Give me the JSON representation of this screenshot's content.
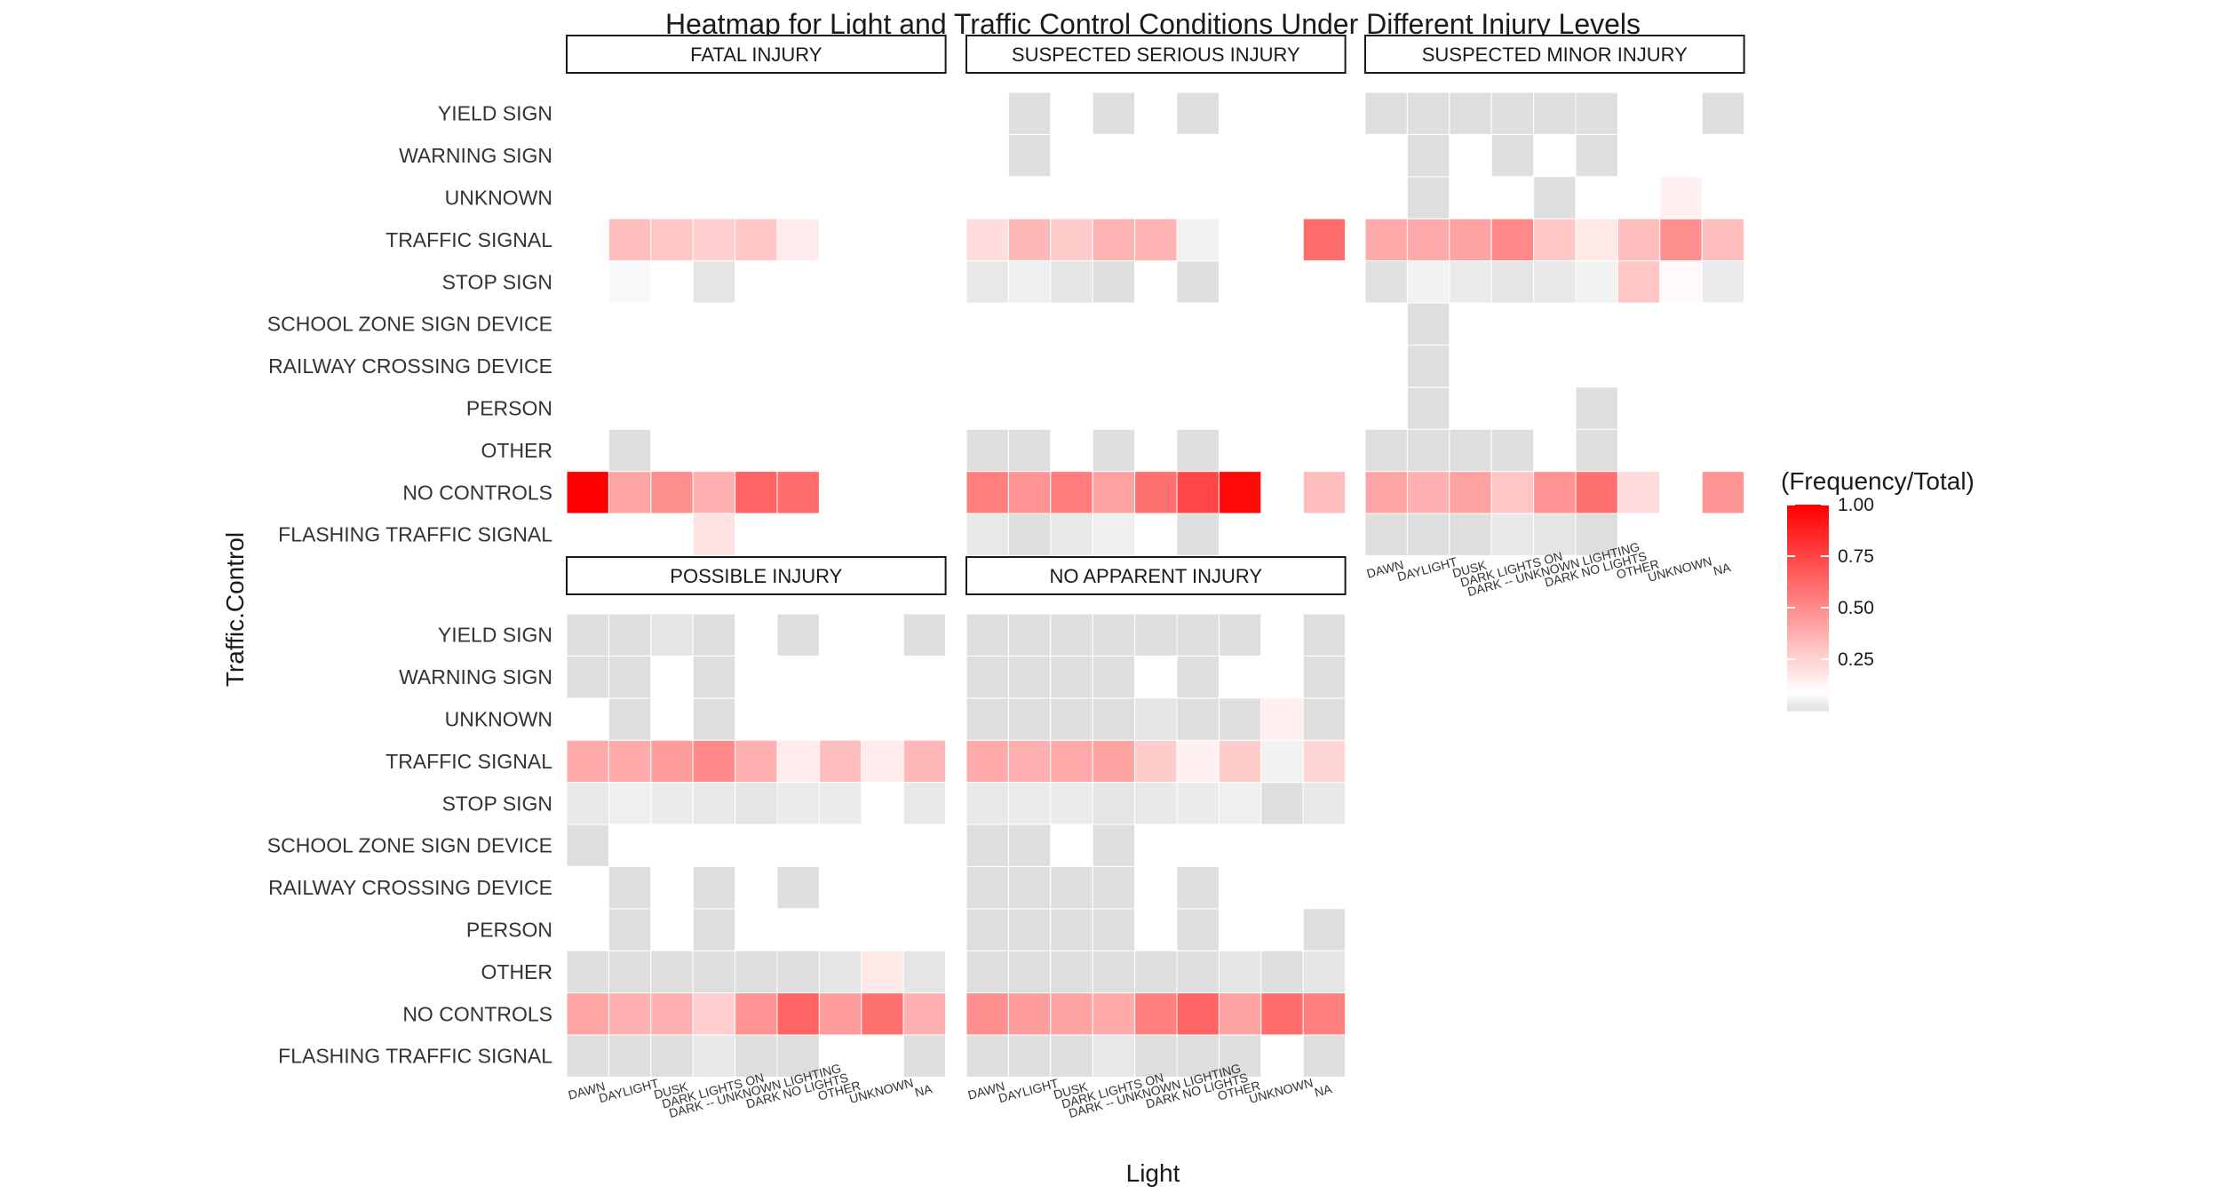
{
  "chart_data": {
    "type": "heatmap",
    "title": "Heatmap for Light and Traffic Control Conditions Under Different Injury Levels",
    "xlabel": "Light",
    "ylabel": "Traffic.Control",
    "x_categories": [
      "DAWN",
      "DAYLIGHT",
      "DUSK",
      "DARK LIGHTS ON",
      "DARK -- UNKNOWN LIGHTING",
      "DARK NO LIGHTS",
      "OTHER",
      "UNKNOWN",
      "NA"
    ],
    "y_categories": [
      "FLASHING TRAFFIC SIGNAL",
      "NO CONTROLS",
      "OTHER",
      "PERSON",
      "RAILWAY CROSSING DEVICE",
      "SCHOOL ZONE SIGN DEVICE",
      "STOP SIGN",
      "TRAFFIC SIGNAL",
      "UNKNOWN",
      "WARNING SIGN",
      "YIELD SIGN"
    ],
    "legend": {
      "title": "(Frequency/Total)",
      "ticks": [
        "0.25",
        "0.50",
        "0.75",
        "1.00"
      ],
      "tick_values": [
        0.25,
        0.5,
        0.75,
        1.0
      ],
      "low_color": "#dedede",
      "mid_color": "#ffffff",
      "high_color": "#ff0000",
      "placement": "right"
    },
    "panels": [
      {
        "name": "FATAL INJURY",
        "values": [
          [
            null,
            null,
            null,
            0.2,
            null,
            null,
            null,
            null,
            null
          ],
          [
            1.0,
            0.42,
            0.5,
            0.38,
            0.65,
            0.62,
            null,
            null,
            null
          ],
          [
            null,
            0.0,
            null,
            null,
            null,
            null,
            null,
            null,
            null
          ],
          [
            null,
            null,
            null,
            null,
            null,
            null,
            null,
            null,
            null
          ],
          [
            null,
            null,
            null,
            null,
            null,
            null,
            null,
            null,
            null
          ],
          [
            null,
            null,
            null,
            null,
            null,
            null,
            null,
            null,
            null
          ],
          [
            null,
            0.08,
            0.1,
            0.02,
            null,
            null,
            null,
            null,
            null
          ],
          [
            null,
            0.33,
            0.3,
            0.27,
            0.3,
            0.17,
            null,
            null,
            null
          ],
          [
            null,
            null,
            null,
            null,
            null,
            null,
            null,
            null,
            null
          ],
          [
            null,
            null,
            null,
            null,
            null,
            null,
            null,
            null,
            null
          ],
          [
            null,
            null,
            null,
            null,
            null,
            null,
            null,
            null,
            null
          ]
        ]
      },
      {
        "name": "SUSPECTED SERIOUS INJURY",
        "values": [
          [
            0.03,
            0.0,
            0.03,
            0.05,
            null,
            0.0,
            null,
            null,
            null
          ],
          [
            0.55,
            0.48,
            0.56,
            0.43,
            0.6,
            0.75,
            0.97,
            null,
            0.33
          ],
          [
            0.0,
            0.0,
            null,
            0.0,
            null,
            0.0,
            null,
            null,
            null
          ],
          [
            null,
            null,
            null,
            null,
            null,
            null,
            null,
            null,
            null
          ],
          [
            null,
            null,
            null,
            null,
            null,
            null,
            null,
            null,
            null
          ],
          [
            null,
            null,
            null,
            null,
            null,
            null,
            null,
            null,
            null
          ],
          [
            0.03,
            0.05,
            0.02,
            0.0,
            null,
            0.0,
            null,
            null,
            null
          ],
          [
            0.22,
            0.35,
            0.28,
            0.37,
            0.37,
            0.06,
            null,
            null,
            0.62
          ],
          [
            null,
            null,
            null,
            null,
            null,
            null,
            null,
            null,
            null
          ],
          [
            null,
            0.0,
            null,
            null,
            null,
            null,
            null,
            null,
            null
          ],
          [
            null,
            0.0,
            null,
            0.0,
            null,
            0.0,
            null,
            null,
            null
          ]
        ]
      },
      {
        "name": "SUSPECTED MINOR INJURY",
        "values": [
          [
            0.0,
            0.0,
            0.0,
            0.03,
            0.02,
            0.0,
            null,
            null,
            null
          ],
          [
            0.42,
            0.38,
            0.43,
            0.3,
            0.48,
            0.6,
            0.23,
            0.1,
            0.47
          ],
          [
            0.0,
            0.0,
            0.0,
            0.0,
            null,
            0.0,
            null,
            null,
            null
          ],
          [
            null,
            0.0,
            null,
            null,
            null,
            0.0,
            null,
            null,
            null
          ],
          [
            null,
            0.0,
            null,
            null,
            null,
            null,
            null,
            null,
            null
          ],
          [
            null,
            0.0,
            null,
            null,
            null,
            null,
            null,
            null,
            null
          ],
          [
            0.01,
            0.06,
            0.04,
            0.02,
            0.03,
            0.06,
            0.3,
            0.12,
            0.04
          ],
          [
            0.4,
            0.4,
            0.43,
            0.52,
            0.3,
            0.18,
            0.33,
            0.5,
            0.33
          ],
          [
            null,
            0.0,
            null,
            null,
            0.0,
            null,
            null,
            0.15,
            null
          ],
          [
            null,
            0.0,
            null,
            0.0,
            null,
            0.0,
            null,
            null,
            null
          ],
          [
            0.0,
            0.0,
            0.0,
            0.0,
            0.0,
            0.0,
            null,
            null,
            0.0
          ]
        ]
      },
      {
        "name": "POSSIBLE INJURY",
        "values": [
          [
            0.0,
            0.0,
            0.0,
            0.03,
            0.0,
            0.0,
            null,
            null,
            0.0
          ],
          [
            0.42,
            0.38,
            0.38,
            0.27,
            0.48,
            0.65,
            0.45,
            0.6,
            0.38
          ],
          [
            0.0,
            0.0,
            0.0,
            0.0,
            0.0,
            0.0,
            0.02,
            0.18,
            0.02
          ],
          [
            null,
            0.0,
            null,
            0.0,
            null,
            null,
            null,
            null,
            null
          ],
          [
            null,
            0.0,
            null,
            0.0,
            null,
            0.0,
            null,
            null,
            null
          ],
          [
            0.0,
            null,
            null,
            null,
            null,
            null,
            null,
            null,
            null
          ],
          [
            0.03,
            0.05,
            0.04,
            0.03,
            0.02,
            0.04,
            0.04,
            null,
            0.03
          ],
          [
            0.4,
            0.4,
            0.45,
            0.52,
            0.38,
            0.17,
            0.33,
            0.17,
            0.35
          ],
          [
            null,
            0.0,
            null,
            0.0,
            null,
            null,
            null,
            null,
            null
          ],
          [
            0.0,
            0.0,
            null,
            0.0,
            null,
            null,
            null,
            null,
            null
          ],
          [
            0.0,
            0.0,
            0.02,
            0.0,
            null,
            0.0,
            null,
            null,
            0.0
          ]
        ]
      },
      {
        "name": "NO APPARENT INJURY",
        "values": [
          [
            0.0,
            0.0,
            0.0,
            0.03,
            0.0,
            0.0,
            0.0,
            null,
            0.0
          ],
          [
            0.5,
            0.45,
            0.43,
            0.4,
            0.55,
            0.65,
            0.43,
            0.62,
            0.55
          ],
          [
            0.0,
            0.0,
            0.0,
            0.0,
            0.0,
            0.0,
            0.02,
            0.0,
            0.02
          ],
          [
            0.0,
            0.0,
            0.0,
            0.0,
            null,
            0.0,
            null,
            null,
            0.0
          ],
          [
            0.0,
            0.0,
            0.0,
            0.0,
            null,
            0.0,
            null,
            null,
            null
          ],
          [
            0.0,
            0.0,
            null,
            0.0,
            null,
            null,
            null,
            null,
            null
          ],
          [
            0.03,
            0.04,
            0.04,
            0.02,
            0.03,
            0.04,
            0.05,
            0.0,
            0.03
          ],
          [
            0.4,
            0.38,
            0.4,
            0.43,
            0.28,
            0.15,
            0.28,
            0.06,
            0.25
          ],
          [
            0.0,
            0.0,
            0.0,
            0.0,
            0.02,
            0.0,
            0.0,
            0.16,
            0.0
          ],
          [
            0.0,
            0.0,
            0.0,
            0.0,
            null,
            0.0,
            null,
            null,
            0.0
          ],
          [
            0.0,
            0.0,
            0.0,
            0.0,
            0.0,
            0.0,
            0.0,
            null,
            0.0
          ]
        ]
      }
    ]
  }
}
